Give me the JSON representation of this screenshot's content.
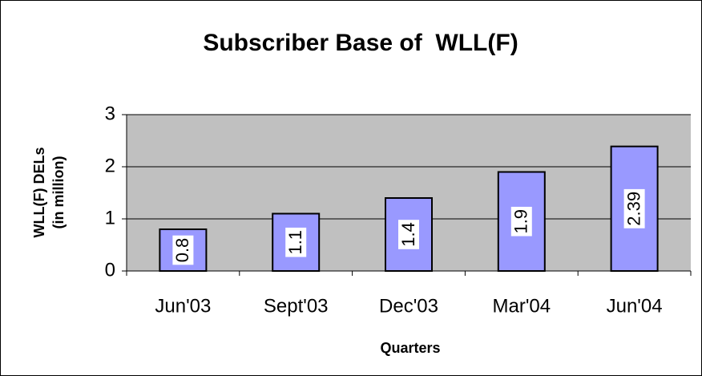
{
  "chart_data": {
    "type": "bar",
    "title": "Subscriber Base of  WLL(F)",
    "x_label": "Quarters",
    "y_label": [
      "WLL(F) DELs",
      "(in million)"
    ],
    "categories": [
      "Jun'03",
      "Sept'03",
      "Dec'03",
      "Mar'04",
      "Jun'04"
    ],
    "values": [
      0.8,
      1.1,
      1.4,
      1.9,
      2.39
    ],
    "color": "#9999ff",
    "ylim": [
      0,
      3
    ],
    "yticks": [
      0,
      1,
      2,
      3
    ],
    "grid": true,
    "plot_background": "#c0c0c0"
  }
}
